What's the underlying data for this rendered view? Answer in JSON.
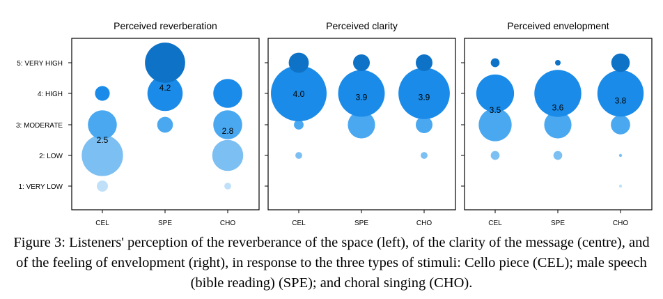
{
  "chart_data": {
    "type": "bubble",
    "y_levels": [
      "1: VERY LOW",
      "2: LOW",
      "3: MODERATE",
      "4: HIGH",
      "5: VERY HIGH"
    ],
    "categories": [
      "CEL",
      "SPE",
      "CHO"
    ],
    "colors": {
      "1": "#bfe0f8",
      "2": "#7cbff2",
      "3": "#4aa8f0",
      "4": "#1a8be8",
      "5": "#0e72c7"
    },
    "panels": [
      {
        "title": "Perceived reverberation",
        "proportions": {
          "CEL": [
            0.04,
            0.55,
            0.27,
            0.07,
            0.0
          ],
          "SPE": [
            0.0,
            0.0,
            0.08,
            0.4,
            0.52
          ],
          "CHO": [
            0.015,
            0.31,
            0.27,
            0.27,
            0.0
          ]
        },
        "means": {
          "CEL": "2.5",
          "SPE": "4.2",
          "CHO": "2.8"
        },
        "mean_values": {
          "CEL": 2.5,
          "SPE": 4.2,
          "CHO": 2.8
        }
      },
      {
        "title": "Perceived clarity",
        "proportions": {
          "CEL": [
            0.0,
            0.015,
            0.03,
            1.0,
            0.13
          ],
          "SPE": [
            0.0,
            0.0,
            0.24,
            0.7,
            0.09
          ],
          "CHO": [
            0.0,
            0.015,
            0.09,
            0.85,
            0.09
          ]
        },
        "means": {
          "CEL": "4.0",
          "SPE": "3.9",
          "CHO": "3.9"
        },
        "mean_values": {
          "CEL": 4.0,
          "SPE": 3.9,
          "CHO": 3.9
        }
      },
      {
        "title": "Perceived envelopment",
        "proportions": {
          "CEL": [
            0.0,
            0.025,
            0.35,
            0.46,
            0.025
          ],
          "SPE": [
            0.0,
            0.025,
            0.24,
            0.71,
            0.01
          ],
          "CHO": [
            0.003,
            0.003,
            0.12,
            0.69,
            0.11
          ]
        },
        "means": {
          "CEL": "3.5",
          "SPE": "3.6",
          "CHO": "3.8"
        },
        "mean_values": {
          "CEL": 3.48,
          "SPE": 3.56,
          "CHO": 3.78
        }
      }
    ]
  },
  "caption": "Figure 3: Listeners' perception of the reverberance of the space (left), of the clarity of the message (centre), and of the feeling of envelopment (right), in response to the three types of stimuli: Cello piece (CEL); male speech (bible reading) (SPE); and choral singing (CHO)."
}
